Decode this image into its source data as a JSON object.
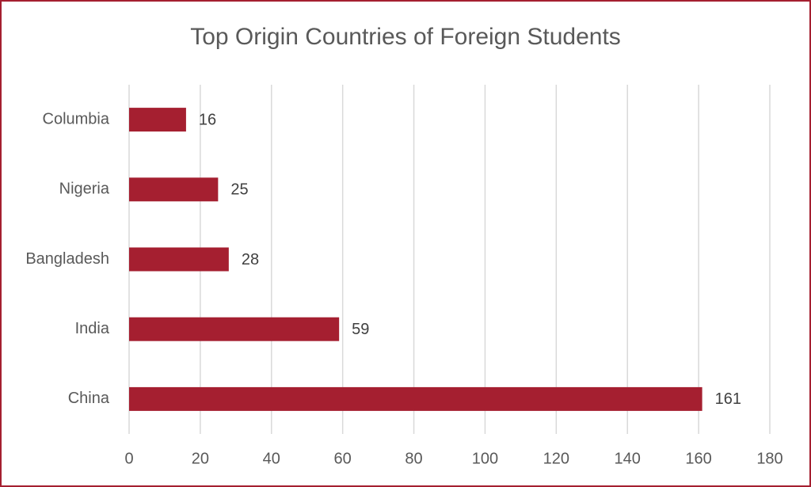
{
  "chart_data": {
    "type": "bar",
    "orientation": "horizontal",
    "title": "Top Origin Countries of Foreign Students",
    "categories": [
      "Columbia",
      "Nigeria",
      "Bangladesh",
      "India",
      "China"
    ],
    "values": [
      16,
      25,
      28,
      59,
      161
    ],
    "color": "#a51f30",
    "xlim": [
      0,
      180
    ],
    "xticks": [
      0,
      20,
      40,
      60,
      80,
      100,
      120,
      140,
      160,
      180
    ],
    "grid": true
  }
}
